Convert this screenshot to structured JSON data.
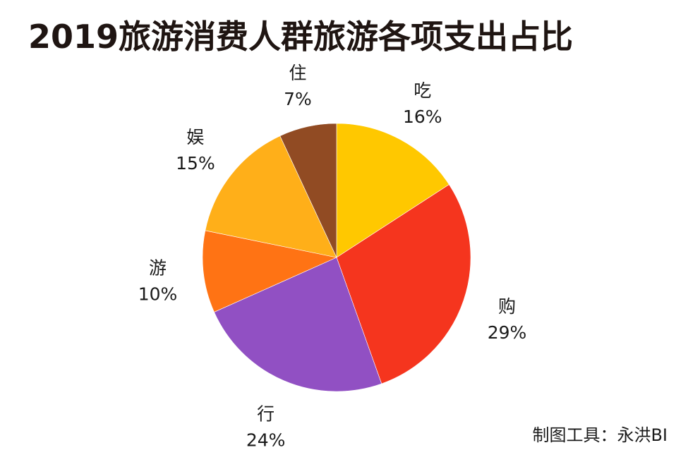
{
  "chart_data": {
    "type": "pie",
    "title": "2019旅游消费人群旅游各项支出占比",
    "slices": [
      {
        "label": "吃",
        "value": 16,
        "value_label": "16%",
        "color": "#FFC800"
      },
      {
        "label": "购",
        "value": 29,
        "value_label": "29%",
        "color": "#F5351E"
      },
      {
        "label": "行",
        "value": 24,
        "value_label": "24%",
        "color": "#9150C3"
      },
      {
        "label": "游",
        "value": 10,
        "value_label": "10%",
        "color": "#FF7314"
      },
      {
        "label": "娱",
        "value": 15,
        "value_label": "15%",
        "color": "#FFAF19"
      },
      {
        "label": "住",
        "value": 7,
        "value_label": "7%",
        "color": "#914B23"
      }
    ],
    "start_angle": "12 o'clock",
    "direction": "clockwise",
    "legend": "none"
  },
  "credit": "制图工具：永洪BI"
}
